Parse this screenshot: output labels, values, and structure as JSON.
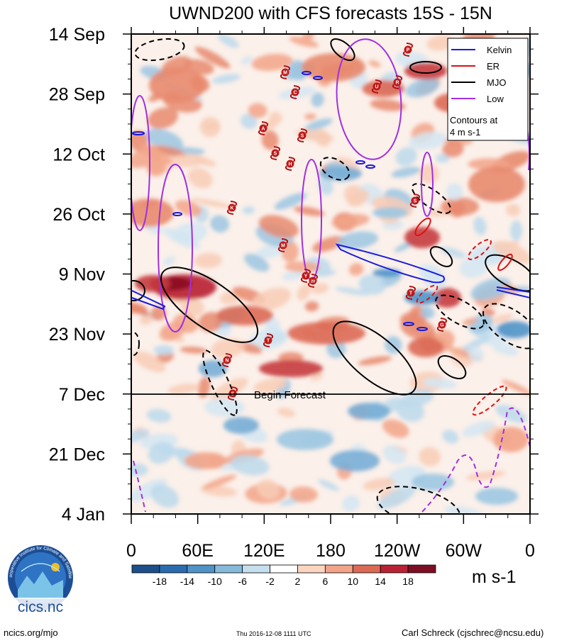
{
  "chart_data": {
    "type": "heatmap",
    "title": "UWND200 with CFS forecasts  15S - 15N",
    "ylabel_ticks": [
      "14 Sep",
      "28 Sep",
      "12 Oct",
      "26 Oct",
      "9 Nov",
      "23 Nov",
      "7 Dec",
      "21 Dec",
      "4 Jan"
    ],
    "xlabel_ticks": [
      "0",
      "60E",
      "120E",
      "180",
      "120W",
      "60W",
      "0"
    ],
    "x_range_deg_east": [
      0,
      360
    ],
    "forecast_marker": "Begin Forecast",
    "legend": {
      "entries": [
        {
          "label": "Kelvin",
          "color": "#1a1adc"
        },
        {
          "label": "ER",
          "color": "#e01010"
        },
        {
          "label": "MJO",
          "color": "#000000"
        },
        {
          "label": "Low",
          "color": "#a030e0"
        }
      ],
      "note": "Contours at\n4 m s-1",
      "placement": "top-right"
    },
    "colorbar": {
      "units": "m s-1",
      "tick_labels": [
        "-18",
        "-14",
        "-10",
        "-6",
        "-2",
        "2",
        "6",
        "10",
        "14",
        "18"
      ],
      "colors": [
        "#1d4f8a",
        "#2b6cb0",
        "#4f93c8",
        "#86bada",
        "#c5dfee",
        "#ffffff",
        "#fbd5bf",
        "#f2a488",
        "#dc6a55",
        "#b92234",
        "#7d0e24"
      ]
    },
    "storm_labels": [
      "M",
      "C",
      "U",
      "R",
      "P",
      "A",
      "S",
      "S",
      "H",
      "K",
      "M",
      "Y",
      "20",
      "T",
      "T",
      "N",
      "S",
      "S",
      "G"
    ]
  },
  "footer": {
    "left": "ncics.org/mjo",
    "center": "Thu 2016-12-08 1111 UTC",
    "right": "Carl Schreck (cjschrec@ncsu.edu)",
    "logo_text": "cics.nc",
    "logo_ring": "Cooperative Institute for Climate and Satellites"
  }
}
